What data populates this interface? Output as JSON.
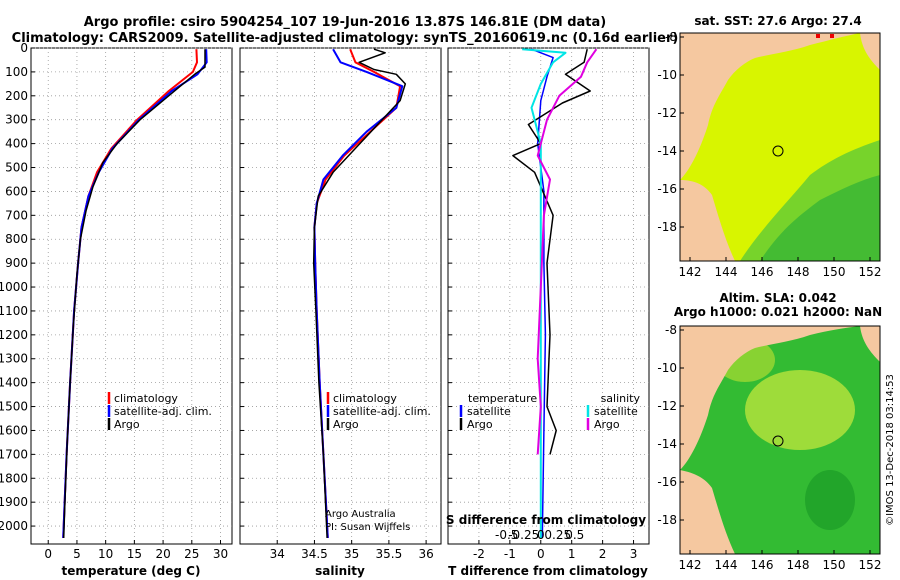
{
  "header": {
    "line1": "Argo profile: csiro 5904254_107 19-Jun-2016 13.87S 146.81E (DM data)",
    "line2": "Climatology: CARS2009. Satellite-adjusted climatology: synTS_20160619.nc (0.16d earlier)"
  },
  "colors": {
    "climatology": "#ff0000",
    "satellite": "#0000ff",
    "argo": "#000000",
    "sat_s": "#00e5e5",
    "argo_s": "#e000e0",
    "land": "#f5c8a0"
  },
  "chart_data": [
    {
      "type": "line",
      "title": "",
      "xlabel": "temperature (deg C)",
      "ylabel": "",
      "xlim": [
        -3,
        32
      ],
      "ylim": [
        2075,
        0
      ],
      "xticks": [
        "0",
        "5",
        "10",
        "15",
        "20",
        "25",
        "30"
      ],
      "yticks": [
        "0",
        "100",
        "200",
        "300",
        "400",
        "500",
        "600",
        "700",
        "800",
        "900",
        "1000",
        "1100",
        "1200",
        "1300",
        "1400",
        "1500",
        "1600",
        "1700",
        "1800",
        "1900",
        "2000"
      ],
      "legend": [
        "climatology",
        "satellite-adj. clim.",
        "Argo"
      ],
      "series": [
        {
          "name": "climatology",
          "points": [
            [
              25.8,
              5
            ],
            [
              25.9,
              60
            ],
            [
              25.2,
              100
            ],
            [
              21,
              180
            ],
            [
              15.5,
              300
            ],
            [
              11,
              420
            ],
            [
              8.5,
              520
            ],
            [
              7,
              620
            ],
            [
              5.8,
              750
            ],
            [
              5.2,
              900
            ],
            [
              4.5,
              1100
            ],
            [
              3.8,
              1400
            ],
            [
              3.2,
              1700
            ],
            [
              2.6,
              2050
            ]
          ]
        },
        {
          "name": "satellite-adj. clim.",
          "points": [
            [
              27.5,
              5
            ],
            [
              27.6,
              60
            ],
            [
              26,
              110
            ],
            [
              21.5,
              180
            ],
            [
              15.8,
              300
            ],
            [
              11.2,
              420
            ],
            [
              8.8,
              520
            ],
            [
              7,
              620
            ],
            [
              5.8,
              750
            ],
            [
              5.2,
              900
            ],
            [
              4.5,
              1100
            ],
            [
              3.8,
              1400
            ],
            [
              3.2,
              1700
            ],
            [
              2.6,
              2050
            ]
          ]
        },
        {
          "name": "Argo",
          "points": [
            [
              27.3,
              5
            ],
            [
              27.3,
              80
            ],
            [
              25.5,
              110
            ],
            [
              22.5,
              170
            ],
            [
              16,
              300
            ],
            [
              12,
              400
            ],
            [
              9.5,
              480
            ],
            [
              7.8,
              580
            ],
            [
              6.6,
              680
            ],
            [
              5.6,
              800
            ],
            [
              5,
              950
            ],
            [
              4.4,
              1150
            ],
            [
              3.8,
              1400
            ],
            [
              3.3,
              1650
            ],
            [
              2.9,
              1900
            ],
            [
              2.7,
              2050
            ]
          ]
        }
      ]
    },
    {
      "type": "line",
      "title": "",
      "xlabel": "salinity",
      "xlim": [
        33.5,
        36.2
      ],
      "ylim": [
        2075,
        0
      ],
      "xticks": [
        "34",
        "34.5",
        "35",
        "35.5",
        "36"
      ],
      "legend": [
        "climatology",
        "satellite-adj. clim.",
        "Argo"
      ],
      "annotation": [
        "Argo Australia",
        "PI: Susan Wijffels"
      ],
      "series": [
        {
          "name": "climatology",
          "points": [
            [
              34.98,
              5
            ],
            [
              35.05,
              60
            ],
            [
              35.3,
              100
            ],
            [
              35.65,
              160
            ],
            [
              35.6,
              250
            ],
            [
              35.25,
              350
            ],
            [
              34.9,
              450
            ],
            [
              34.65,
              550
            ],
            [
              34.53,
              650
            ],
            [
              34.5,
              750
            ],
            [
              34.51,
              900
            ],
            [
              34.53,
              1100
            ],
            [
              34.57,
              1400
            ],
            [
              34.62,
              1700
            ],
            [
              34.68,
              2050
            ]
          ]
        },
        {
          "name": "satellite-adj. clim.",
          "points": [
            [
              34.75,
              5
            ],
            [
              34.85,
              60
            ],
            [
              35.2,
              100
            ],
            [
              35.68,
              160
            ],
            [
              35.6,
              250
            ],
            [
              35.2,
              350
            ],
            [
              34.88,
              450
            ],
            [
              34.62,
              550
            ],
            [
              34.53,
              650
            ],
            [
              34.5,
              750
            ],
            [
              34.51,
              900
            ],
            [
              34.53,
              1100
            ],
            [
              34.57,
              1400
            ],
            [
              34.62,
              1700
            ],
            [
              34.68,
              2050
            ]
          ]
        },
        {
          "name": "Argo",
          "points": [
            [
              35.3,
              5
            ],
            [
              35.45,
              20
            ],
            [
              35.1,
              60
            ],
            [
              35.3,
              90
            ],
            [
              35.6,
              110
            ],
            [
              35.72,
              150
            ],
            [
              35.65,
              220
            ],
            [
              35.35,
              320
            ],
            [
              35.05,
              420
            ],
            [
              34.75,
              520
            ],
            [
              34.55,
              620
            ],
            [
              34.5,
              750
            ],
            [
              34.49,
              900
            ],
            [
              34.52,
              1100
            ],
            [
              34.56,
              1400
            ],
            [
              34.62,
              1700
            ],
            [
              34.67,
              2050
            ]
          ]
        }
      ]
    },
    {
      "type": "line",
      "title": "",
      "xlabel": "T difference from climatology",
      "xlabel_top": "S difference from climatology",
      "xlim": [
        -3,
        3.5
      ],
      "ylim": [
        2075,
        0
      ],
      "xticks": [
        "-2",
        "-1",
        "0",
        "1",
        "2",
        "3"
      ],
      "xticks_top": [
        "-0.5",
        "-0.25",
        "0",
        "0.25",
        "0.5"
      ],
      "legend_left_title": "temperature",
      "legend_right_title": "salinity",
      "legend_left": [
        "satellite",
        "Argo"
      ],
      "legend_right": [
        "satellite",
        "Argo"
      ],
      "series": [
        {
          "name": "T satellite",
          "points": [
            [
              -0.3,
              5
            ],
            [
              0.4,
              40
            ],
            [
              0.2,
              120
            ],
            [
              0,
              220
            ],
            [
              -0.1,
              400
            ],
            [
              0.1,
              600
            ],
            [
              0.1,
              900
            ],
            [
              0.15,
              1200
            ],
            [
              0.1,
              1600
            ],
            [
              0.05,
              2050
            ]
          ]
        },
        {
          "name": "T Argo",
          "points": [
            [
              1.5,
              5
            ],
            [
              1.4,
              60
            ],
            [
              0.8,
              110
            ],
            [
              1.6,
              180
            ],
            [
              0.7,
              230
            ],
            [
              -0.4,
              320
            ],
            [
              0,
              400
            ],
            [
              -0.9,
              450
            ],
            [
              -0.2,
              520
            ],
            [
              0.4,
              700
            ],
            [
              0.2,
              900
            ],
            [
              0.3,
              1200
            ],
            [
              0.2,
              1500
            ],
            [
              0.5,
              1600
            ],
            [
              0.3,
              1700
            ]
          ]
        },
        {
          "name": "S satellite",
          "points": [
            [
              -0.6,
              5
            ],
            [
              0.8,
              20
            ],
            [
              0.4,
              60
            ],
            [
              0,
              150
            ],
            [
              -0.3,
              250
            ],
            [
              0,
              400
            ],
            [
              0,
              700
            ],
            [
              0,
              1000
            ],
            [
              0,
              1500
            ],
            [
              0,
              2050
            ]
          ]
        },
        {
          "name": "S Argo",
          "points": [
            [
              1.8,
              5
            ],
            [
              1.5,
              60
            ],
            [
              1.3,
              120
            ],
            [
              0.6,
              200
            ],
            [
              0.2,
              300
            ],
            [
              -0.1,
              450
            ],
            [
              0.3,
              550
            ],
            [
              0.1,
              700
            ],
            [
              0,
              1000
            ],
            [
              -0.1,
              1300
            ],
            [
              0,
              1500
            ],
            [
              -0.1,
              1700
            ]
          ]
        }
      ]
    }
  ],
  "maps": [
    {
      "title": "sat. SST: 27.6 Argo: 27.4",
      "xticks": [
        "142",
        "144",
        "146",
        "148",
        "150",
        "152"
      ],
      "yticks": [
        "-8",
        "-10",
        "-12",
        "-14",
        "-16",
        "-18"
      ]
    },
    {
      "title1": "Altim. SLA: 0.042",
      "title2": "Argo h1000: 0.021 h2000: NaN",
      "xticks": [
        "142",
        "144",
        "146",
        "148",
        "150",
        "152"
      ],
      "yticks": [
        "-8",
        "-10",
        "-12",
        "-14",
        "-16",
        "-18"
      ]
    }
  ],
  "watermark": "©IMOS 13-Dec-2018 03:14:53"
}
